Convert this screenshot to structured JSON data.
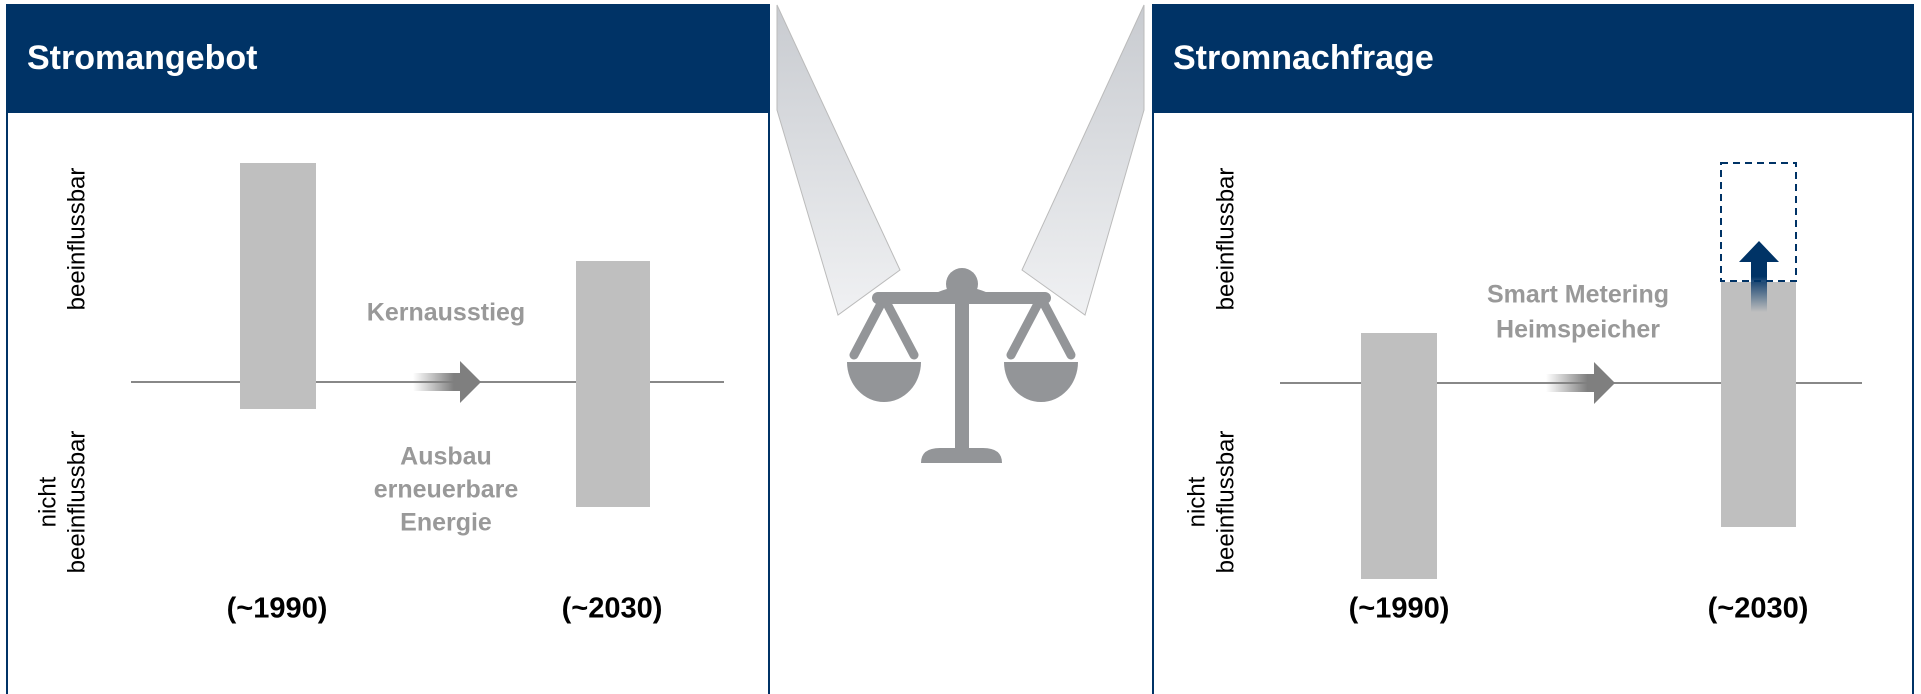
{
  "panels": [
    {
      "title": "Stromangebot",
      "upper_label": "beeinflussbar",
      "lower_label": [
        "nicht",
        "beeinflussbar"
      ],
      "note_above": "Kernausstieg",
      "note_below": [
        "Ausbau",
        "erneuerbare",
        "Energie"
      ],
      "periods": [
        "(~1990)",
        "(~2030)"
      ]
    },
    {
      "title": "Stromnachfrage",
      "upper_label": "beeinflussbar",
      "lower_label": [
        "nicht",
        "beeinflussbar"
      ],
      "note_above": [
        "Smart Metering",
        "Heimspeicher"
      ],
      "periods": [
        "(~1990)",
        "(~2030)"
      ]
    }
  ]
}
